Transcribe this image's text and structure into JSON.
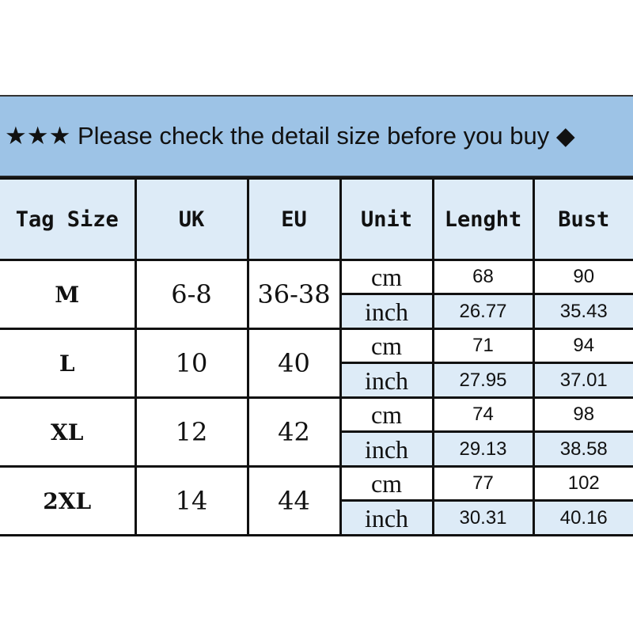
{
  "banner": {
    "text": "★★★ Please check the detail size before you buy ◆"
  },
  "headers": [
    "Tag Size",
    "UK",
    "EU",
    "Unit",
    "Lenght",
    "Bust"
  ],
  "rows": [
    {
      "tag": "M",
      "uk": "6-8",
      "eu": "36-38",
      "cm_label": "cm",
      "inch_label": "inch",
      "length_cm": "68",
      "bust_cm": "90",
      "length_inch": "26.77",
      "bust_inch": "35.43"
    },
    {
      "tag": "L",
      "uk": "10",
      "eu": "40",
      "cm_label": "cm",
      "inch_label": "inch",
      "length_cm": "71",
      "bust_cm": "94",
      "length_inch": "27.95",
      "bust_inch": "37.01"
    },
    {
      "tag": "XL",
      "uk": "12",
      "eu": "42",
      "cm_label": "cm",
      "inch_label": "inch",
      "length_cm": "74",
      "bust_cm": "98",
      "length_inch": "29.13",
      "bust_inch": "38.58"
    },
    {
      "tag": "2XL",
      "uk": "14",
      "eu": "44",
      "cm_label": "cm",
      "inch_label": "inch",
      "length_cm": "77",
      "bust_cm": "102",
      "length_inch": "30.31",
      "bust_inch": "40.16"
    }
  ],
  "colors": {
    "banner": "#9dc3e6",
    "light": "#ddebf7"
  }
}
